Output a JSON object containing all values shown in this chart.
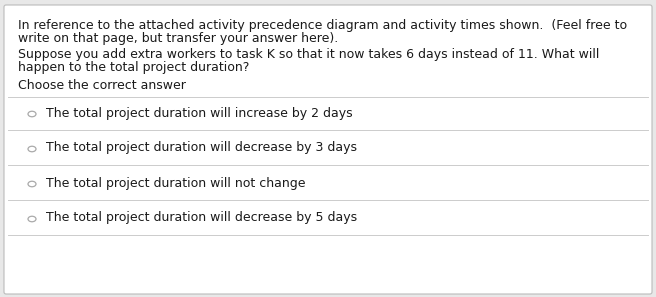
{
  "bg_color": "#e8e8e8",
  "box_bg_color": "#ffffff",
  "box_edge_color": "#bbbbbb",
  "text_color": "#1a1a1a",
  "divider_color": "#cccccc",
  "radio_edge_color": "#aaaaaa",
  "paragraph1_line1": "In reference to the attached activity precedence diagram and activity times shown.  (Feel free to",
  "paragraph1_line2": "write on that page, but transfer your answer here).",
  "paragraph2_line1": "Suppose you add extra workers to task K so that it now takes 6 days instead of 11. What will",
  "paragraph2_line2": "happen to the total project duration?",
  "paragraph3": "Choose the correct answer",
  "options": [
    "The total project duration will increase by 2 days",
    "The total project duration will decrease by 3 days",
    "The total project duration will not change",
    "The total project duration will decrease by 5 days"
  ],
  "font_size_body": 9.0,
  "font_size_options": 9.0
}
